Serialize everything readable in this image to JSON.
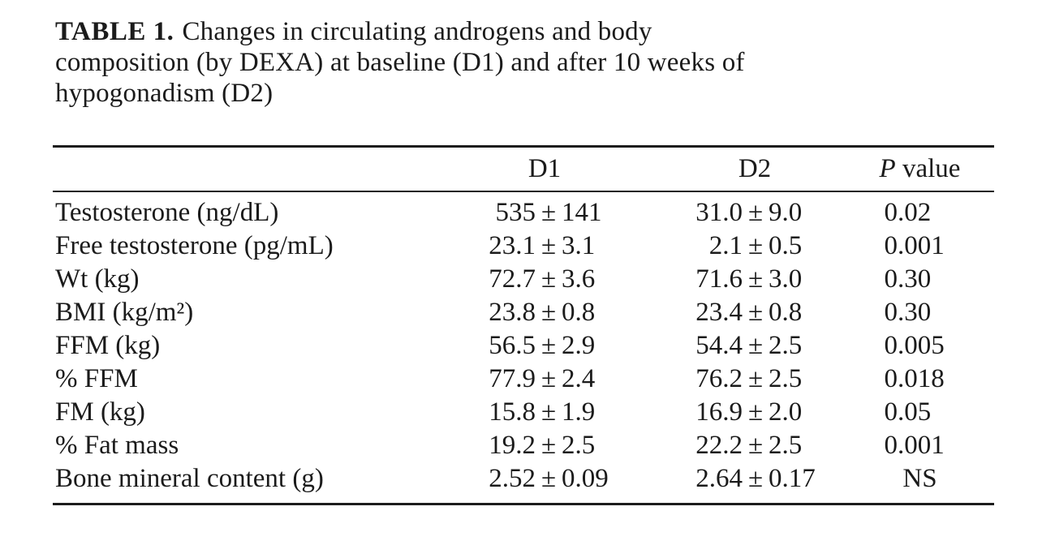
{
  "page": {
    "background": "#ffffff",
    "text_color": "#1b1b1b",
    "rule_color": "#1c1c1c"
  },
  "caption": {
    "label": "TABLE 1.",
    "lines": [
      "Changes in circulating androgens and body",
      "composition (by DEXA) at baseline (D1) and after 10 weeks of",
      "hypogonadism (D2)"
    ]
  },
  "table": {
    "columns": {
      "d1": "D1",
      "d2": "D2",
      "p_italic": "P",
      "p_rest": " value"
    },
    "plus_minus": "±",
    "rows": [
      {
        "label": "Testosterone (ng/dL)",
        "d1_mean": "535",
        "d1_sd": "141",
        "d2_mean": "31.0",
        "d2_sd": "9.0",
        "p": "0.02"
      },
      {
        "label": "Free testosterone (pg/mL)",
        "d1_mean": "23.1",
        "d1_sd": "3.1",
        "d2_mean": "2.1",
        "d2_sd": "0.5",
        "p": "0.001"
      },
      {
        "label": "Wt (kg)",
        "d1_mean": "72.7",
        "d1_sd": "3.6",
        "d2_mean": "71.6",
        "d2_sd": "3.0",
        "p": "0.30"
      },
      {
        "label": "BMI (kg/m²)",
        "d1_mean": "23.8",
        "d1_sd": "0.8",
        "d2_mean": "23.4",
        "d2_sd": "0.8",
        "p": "0.30"
      },
      {
        "label": "FFM (kg)",
        "d1_mean": "56.5",
        "d1_sd": "2.9",
        "d2_mean": "54.4",
        "d2_sd": "2.5",
        "p": "0.005"
      },
      {
        "label": "% FFM",
        "d1_mean": "77.9",
        "d1_sd": "2.4",
        "d2_mean": "76.2",
        "d2_sd": "2.5",
        "p": "0.018"
      },
      {
        "label": "FM (kg)",
        "d1_mean": "15.8",
        "d1_sd": "1.9",
        "d2_mean": "16.9",
        "d2_sd": "2.0",
        "p": "0.05"
      },
      {
        "label": "% Fat mass",
        "d1_mean": "19.2",
        "d1_sd": "2.5",
        "d2_mean": "22.2",
        "d2_sd": "2.5",
        "p": "0.001"
      },
      {
        "label": "Bone mineral content (g)",
        "d1_mean": "2.52",
        "d1_sd": "0.09",
        "d2_mean": "2.64",
        "d2_sd": "0.17",
        "p": "NS"
      }
    ]
  }
}
